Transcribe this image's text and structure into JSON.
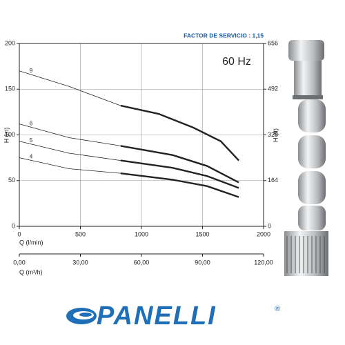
{
  "chart_data": {
    "type": "line",
    "subtitle": "FACTOR DE SERVICIO : 1,15",
    "annotation": "60 Hz",
    "xlabel": "Q (l/min)",
    "x2label": "Q (m³/h)",
    "ylabel": "H (m)",
    "y2label": "H (ft)",
    "xlim": [
      0,
      2000
    ],
    "xticks": [
      0,
      500,
      1000,
      1500,
      2000
    ],
    "x2lim": [
      0,
      120
    ],
    "x2ticks": [
      {
        "value": 0,
        "label": "0,00"
      },
      {
        "value": 30,
        "label": "30,00"
      },
      {
        "value": 60,
        "label": "60,00"
      },
      {
        "value": 90,
        "label": "90,00"
      },
      {
        "value": 120,
        "label": "120,00"
      }
    ],
    "ylim": [
      0,
      200
    ],
    "yticks": [
      0,
      50,
      100,
      150,
      200
    ],
    "y2lim": [
      0,
      656
    ],
    "y2ticks": [
      0,
      164,
      328,
      492,
      656
    ],
    "grid": true,
    "bold_from": 830,
    "series": [
      {
        "name": "9",
        "color": "#222222",
        "x": [
          0,
          407,
          830,
          1141,
          1424,
          1650,
          1797
        ],
        "values": [
          170,
          153,
          132,
          123,
          108,
          93,
          72
        ]
      },
      {
        "name": "6",
        "color": "#222222",
        "x": [
          0,
          407,
          830,
          1254,
          1537,
          1797
        ],
        "values": [
          112,
          97,
          88,
          78,
          66,
          48
        ]
      },
      {
        "name": "5",
        "color": "#222222",
        "x": [
          0,
          407,
          830,
          1254,
          1537,
          1797
        ],
        "values": [
          93,
          80,
          72,
          64,
          55,
          42
        ]
      },
      {
        "name": "4",
        "color": "#222222",
        "x": [
          0,
          407,
          830,
          1254,
          1537,
          1797
        ],
        "values": [
          75,
          63,
          58,
          51,
          44,
          32
        ]
      }
    ]
  },
  "logo": {
    "text": "PANELLI",
    "mark": "®"
  }
}
